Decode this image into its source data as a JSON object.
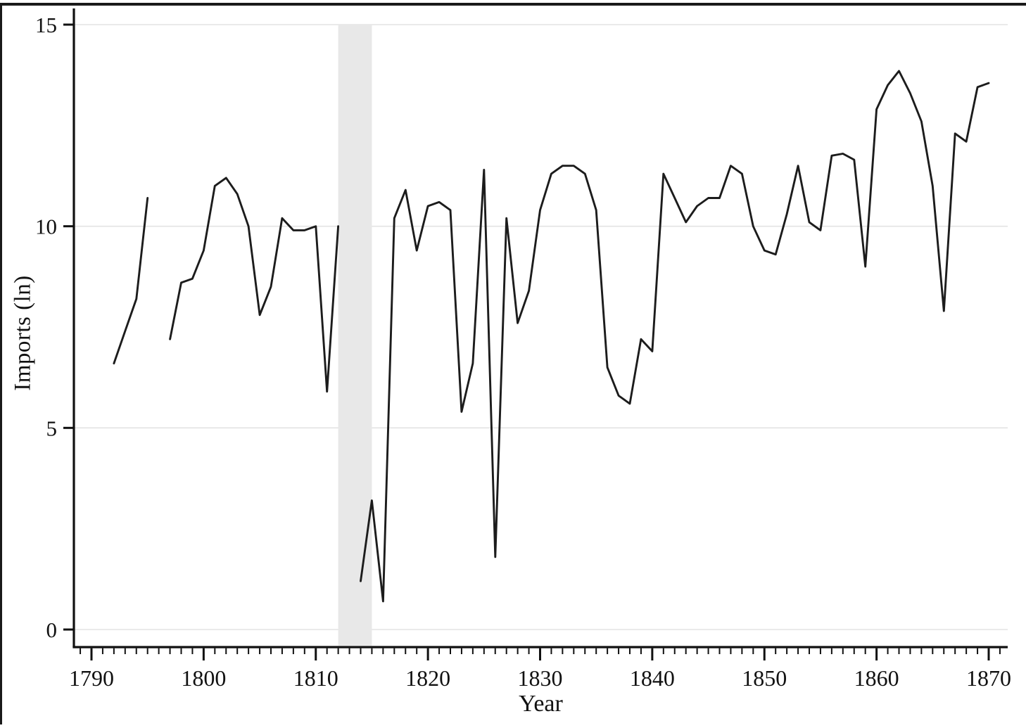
{
  "figure": {
    "kind": "statistical line chart (scanned journal figure)",
    "background_color": "#ffffff",
    "border_color": "#1a1a1a"
  },
  "chart_data": {
    "type": "line",
    "title": "",
    "xlabel": "Year",
    "ylabel": "Imports (ln)",
    "xlim": [
      1788,
      1871.5
    ],
    "ylim": [
      0,
      15
    ],
    "xticks": [
      1790,
      1800,
      1810,
      1820,
      1830,
      1840,
      1850,
      1860,
      1870
    ],
    "yticks": [
      0,
      5,
      10,
      15
    ],
    "x_minor_tick_interval": 1,
    "grid": "horizontal light gray gridlines at y tick values",
    "legend": "none",
    "line_color": "#1c1c1c",
    "grid_color": "#e3e3e3",
    "axis_color": "#111111",
    "shaded_band": {
      "from": 1812,
      "to": 1815,
      "color": "#e8e8e8",
      "note": "vertical shaded region, data gap period"
    },
    "series": [
      {
        "name": "Imports (ln)",
        "x": [
          1792,
          1793,
          1794,
          1795,
          1796,
          1797,
          1798,
          1799,
          1800,
          1801,
          1802,
          1803,
          1804,
          1805,
          1806,
          1807,
          1808,
          1809,
          1810,
          1811,
          1812,
          1813,
          1814,
          1815,
          1816,
          1817,
          1818,
          1819,
          1820,
          1821,
          1822,
          1823,
          1824,
          1825,
          1826,
          1827,
          1828,
          1829,
          1830,
          1831,
          1832,
          1833,
          1834,
          1835,
          1836,
          1837,
          1838,
          1839,
          1840,
          1841,
          1842,
          1843,
          1844,
          1845,
          1846,
          1847,
          1848,
          1849,
          1850,
          1851,
          1852,
          1853,
          1854,
          1855,
          1856,
          1857,
          1858,
          1859,
          1860,
          1861,
          1862,
          1863,
          1864,
          1865,
          1866,
          1867,
          1868,
          1869,
          1870
        ],
        "y": [
          6.6,
          7.4,
          8.2,
          10.7,
          null,
          7.2,
          8.6,
          8.7,
          9.4,
          11.0,
          11.2,
          10.8,
          10.0,
          7.8,
          8.5,
          10.2,
          9.9,
          9.9,
          10.0,
          5.9,
          10.0,
          null,
          1.2,
          3.2,
          0.7,
          10.2,
          10.9,
          9.4,
          10.5,
          10.6,
          10.4,
          5.4,
          6.6,
          11.4,
          1.8,
          10.2,
          7.6,
          8.4,
          10.4,
          11.3,
          11.5,
          11.5,
          11.3,
          10.4,
          6.5,
          5.8,
          5.6,
          7.2,
          6.9,
          11.3,
          10.7,
          10.1,
          10.5,
          10.7,
          10.7,
          11.5,
          11.3,
          10.0,
          9.4,
          9.3,
          10.3,
          11.5,
          10.1,
          9.9,
          11.75,
          11.8,
          11.65,
          9.0,
          12.9,
          13.5,
          13.85,
          13.3,
          12.6,
          11.0,
          7.9,
          12.3,
          12.1,
          13.45,
          13.55
        ]
      }
    ]
  }
}
